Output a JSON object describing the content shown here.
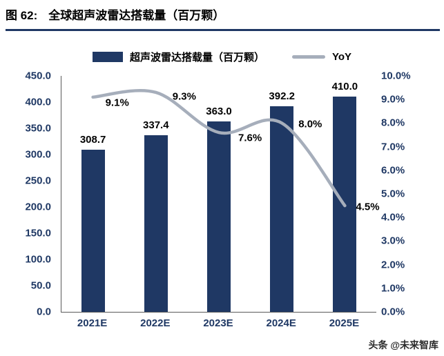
{
  "header": {
    "title_prefix": "图 62:",
    "title_text": "全球超声波雷达搭载量（百万颗）",
    "underline_color": "#1F3864"
  },
  "legend": {
    "bar_label": "超声波雷达搭载量（百万颗）",
    "line_label": "YoY"
  },
  "chart_data": {
    "type": "bar+line",
    "title": "全球超声波雷达搭载量（百万颗）",
    "categories": [
      "2021E",
      "2022E",
      "2023E",
      "2024E",
      "2025E"
    ],
    "series": [
      {
        "name": "超声波雷达搭载量（百万颗）",
        "type": "bar",
        "axis": "left",
        "values": [
          308.7,
          337.4,
          363.0,
          392.2,
          410.0
        ],
        "labels": [
          "308.7",
          "337.4",
          "363.0",
          "392.2",
          "410.0"
        ],
        "color": "#1F3864"
      },
      {
        "name": "YoY",
        "type": "line",
        "axis": "right",
        "values": [
          9.1,
          9.3,
          7.6,
          8.0,
          4.5
        ],
        "labels": [
          "9.1%",
          "9.3%",
          "7.6%",
          "8.0%",
          "4.5%"
        ],
        "color": "#A6AEBB",
        "smooth": true
      }
    ],
    "left_axis": {
      "min": 0,
      "max": 450,
      "step": 50
    },
    "right_axis": {
      "min": 0,
      "max": 10,
      "step": 1,
      "suffix": "%"
    },
    "grid": false,
    "legend_position": "top"
  },
  "watermark": "头条 @未来智库"
}
